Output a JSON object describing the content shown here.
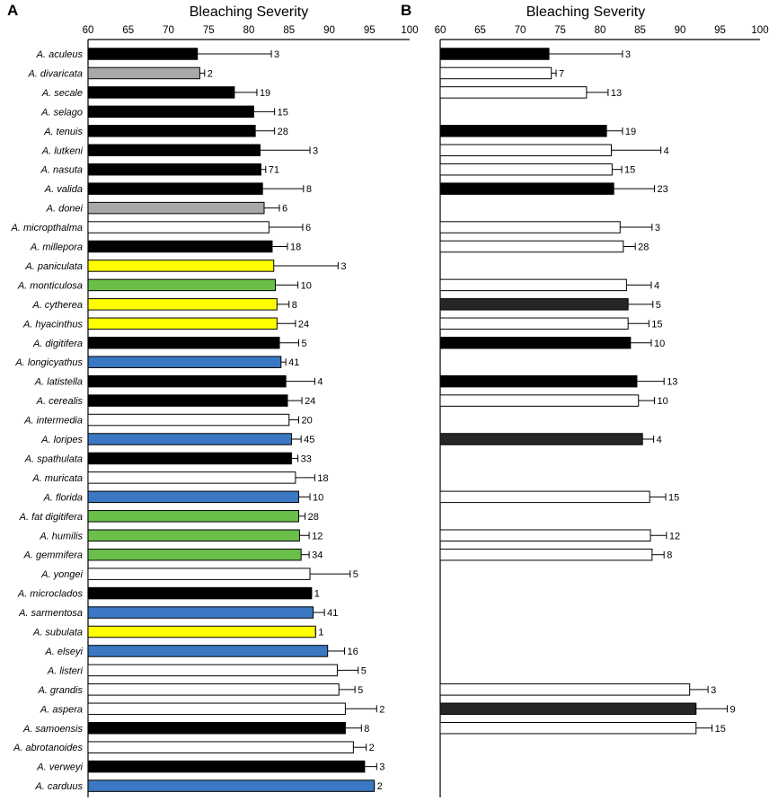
{
  "chart_data": {
    "type": "bar",
    "orientation": "horizontal",
    "xlim": [
      60,
      100
    ],
    "xticks": [
      60,
      65,
      70,
      75,
      80,
      85,
      90,
      95,
      100
    ],
    "colors": {
      "black": "#000000",
      "dark": "#262626",
      "grey": "#a8a8a8",
      "white": "#ffffff",
      "yellow": "#ffff00",
      "green": "#6abf4b",
      "blue": "#3a78c4"
    },
    "categories": [
      "A. aculeus",
      "A. divaricata",
      "A. secale",
      "A. selago",
      "A. tenuis",
      "A. lutkeni",
      "A. nasuta",
      "A. valida",
      "A. donei",
      "A. micropthalma",
      "A. millepora",
      "A. paniculata",
      "A. monticulosa",
      "A. cytherea",
      "A. hyacinthus",
      "A. digitifera",
      "A. longicyathus",
      "A. latistella",
      "A. cerealis",
      "A. intermedia",
      "A. loripes",
      "A. spathulata",
      "A. muricata",
      "A. florida",
      "A. fat digitifera",
      "A. humilis",
      "A. gemmifera",
      "A. yongei",
      "A. microclados",
      "A. sarmentosa",
      "A. subulata",
      "A. elseyi",
      "A. listeri",
      "A. grandis",
      "A. aspera",
      "A. samoensis",
      "A. abrotanoides",
      "A. verweyi",
      "A. carduus"
    ],
    "panels": [
      {
        "letter": "A",
        "xlabel": "Bleaching Severity",
        "bars": [
          {
            "value": 73.6,
            "err": 9.2,
            "n": "3",
            "color": "black"
          },
          {
            "value": 73.9,
            "err": 0.6,
            "n": "2",
            "color": "grey"
          },
          {
            "value": 78.2,
            "err": 2.8,
            "n": "19",
            "color": "black"
          },
          {
            "value": 80.6,
            "err": 2.6,
            "n": "15",
            "color": "black"
          },
          {
            "value": 80.8,
            "err": 2.4,
            "n": "28",
            "color": "black"
          },
          {
            "value": 81.4,
            "err": 6.2,
            "n": "3",
            "color": "black"
          },
          {
            "value": 81.5,
            "err": 0.6,
            "n": "71",
            "color": "black"
          },
          {
            "value": 81.7,
            "err": 5.1,
            "n": "8",
            "color": "black"
          },
          {
            "value": 81.9,
            "err": 1.9,
            "n": "6",
            "color": "grey"
          },
          {
            "value": 82.5,
            "err": 4.2,
            "n": "6",
            "color": "white"
          },
          {
            "value": 82.9,
            "err": 1.9,
            "n": "18",
            "color": "black"
          },
          {
            "value": 83.1,
            "err": 8.0,
            "n": "3",
            "color": "yellow"
          },
          {
            "value": 83.3,
            "err": 2.8,
            "n": "10",
            "color": "green"
          },
          {
            "value": 83.5,
            "err": 1.5,
            "n": "8",
            "color": "yellow"
          },
          {
            "value": 83.5,
            "err": 2.3,
            "n": "24",
            "color": "yellow"
          },
          {
            "value": 83.8,
            "err": 2.4,
            "n": "5",
            "color": "black"
          },
          {
            "value": 84.0,
            "err": 0.6,
            "n": "41",
            "color": "blue"
          },
          {
            "value": 84.6,
            "err": 3.6,
            "n": "4",
            "color": "black"
          },
          {
            "value": 84.8,
            "err": 1.8,
            "n": "24",
            "color": "black"
          },
          {
            "value": 85.0,
            "err": 1.2,
            "n": "20",
            "color": "white"
          },
          {
            "value": 85.3,
            "err": 1.2,
            "n": "45",
            "color": "blue"
          },
          {
            "value": 85.3,
            "err": 0.8,
            "n": "33",
            "color": "black"
          },
          {
            "value": 85.8,
            "err": 2.4,
            "n": "18",
            "color": "white"
          },
          {
            "value": 86.2,
            "err": 1.4,
            "n": "10",
            "color": "blue"
          },
          {
            "value": 86.2,
            "err": 0.8,
            "n": "28",
            "color": "green"
          },
          {
            "value": 86.3,
            "err": 1.2,
            "n": "12",
            "color": "green"
          },
          {
            "value": 86.5,
            "err": 1.0,
            "n": "34",
            "color": "green"
          },
          {
            "value": 87.6,
            "err": 5.0,
            "n": "5",
            "color": "white"
          },
          {
            "value": 87.8,
            "err": 0.0,
            "n": "1",
            "color": "black"
          },
          {
            "value": 88.0,
            "err": 1.4,
            "n": "41",
            "color": "blue"
          },
          {
            "value": 88.3,
            "err": 0.0,
            "n": "1",
            "color": "yellow"
          },
          {
            "value": 89.8,
            "err": 2.1,
            "n": "16",
            "color": "blue"
          },
          {
            "value": 91.0,
            "err": 2.6,
            "n": "5",
            "color": "white"
          },
          {
            "value": 91.2,
            "err": 2.0,
            "n": "5",
            "color": "white"
          },
          {
            "value": 92.0,
            "err": 3.9,
            "n": "2",
            "color": "white"
          },
          {
            "value": 92.0,
            "err": 2.0,
            "n": "8",
            "color": "black"
          },
          {
            "value": 93.0,
            "err": 1.6,
            "n": "2",
            "color": "white"
          },
          {
            "value": 94.4,
            "err": 1.5,
            "n": "3",
            "color": "black"
          },
          {
            "value": 95.6,
            "err": 0.0,
            "n": "2",
            "color": "blue"
          }
        ]
      },
      {
        "letter": "B",
        "xlabel": "Bleaching Severity",
        "bars": [
          {
            "value": 73.6,
            "err": 9.2,
            "n": "3",
            "color": "black"
          },
          {
            "value": 73.9,
            "err": 0.6,
            "n": "7",
            "color": "white"
          },
          {
            "value": 78.3,
            "err": 2.7,
            "n": "13",
            "color": "white"
          },
          null,
          {
            "value": 80.8,
            "err": 2.0,
            "n": "19",
            "color": "black"
          },
          {
            "value": 81.4,
            "err": 6.2,
            "n": "4",
            "color": "white"
          },
          {
            "value": 81.5,
            "err": 1.2,
            "n": "15",
            "color": "white"
          },
          {
            "value": 81.7,
            "err": 5.1,
            "n": "23",
            "color": "black"
          },
          null,
          {
            "value": 82.5,
            "err": 4.0,
            "n": "3",
            "color": "white"
          },
          {
            "value": 82.9,
            "err": 1.5,
            "n": "28",
            "color": "white"
          },
          null,
          {
            "value": 83.3,
            "err": 3.1,
            "n": "4",
            "color": "white"
          },
          {
            "value": 83.5,
            "err": 3.1,
            "n": "5",
            "color": "dark"
          },
          {
            "value": 83.5,
            "err": 2.6,
            "n": "15",
            "color": "white"
          },
          {
            "value": 83.8,
            "err": 2.6,
            "n": "10",
            "color": "black"
          },
          null,
          {
            "value": 84.6,
            "err": 3.4,
            "n": "13",
            "color": "black"
          },
          {
            "value": 84.8,
            "err": 2.0,
            "n": "10",
            "color": "white"
          },
          null,
          {
            "value": 85.3,
            "err": 1.4,
            "n": "4",
            "color": "dark"
          },
          null,
          null,
          {
            "value": 86.2,
            "err": 2.0,
            "n": "15",
            "color": "white"
          },
          null,
          {
            "value": 86.3,
            "err": 2.0,
            "n": "12",
            "color": "white"
          },
          {
            "value": 86.5,
            "err": 1.5,
            "n": "8",
            "color": "white"
          },
          null,
          null,
          null,
          null,
          null,
          null,
          {
            "value": 91.2,
            "err": 2.3,
            "n": "3",
            "color": "white"
          },
          {
            "value": 92.0,
            "err": 3.9,
            "n": "9",
            "color": "dark"
          },
          {
            "value": 92.0,
            "err": 2.0,
            "n": "15",
            "color": "white"
          },
          null,
          null,
          null
        ]
      }
    ]
  }
}
